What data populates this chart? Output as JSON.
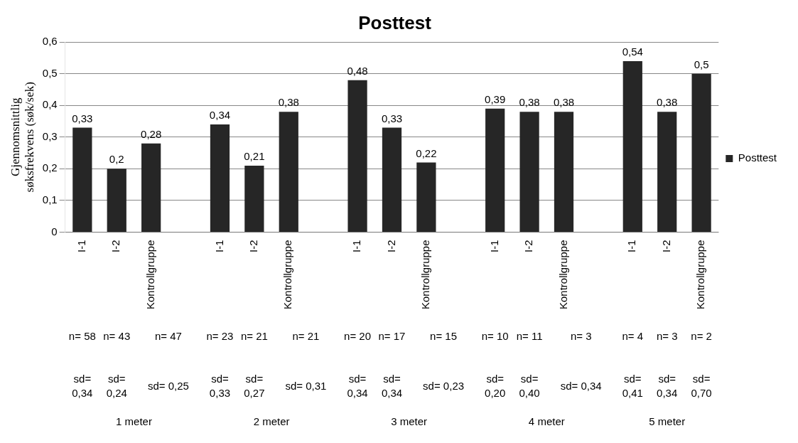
{
  "chart_data": {
    "type": "bar",
    "title": "Posttest",
    "ylabel": "Gjennomsnittlig søksfrekvens (søk/sek)",
    "categories": [
      "I-1",
      "I-2",
      "Kontrollgruppe",
      null,
      "I-1",
      "I-2",
      "Kontrollgruppe",
      null,
      "I-1",
      "I-2",
      "Kontrollgruppe",
      null,
      "I-1",
      "I-2",
      "Kontrollgruppe",
      null,
      "I-1",
      "I-2",
      "Kontrollgruppe"
    ],
    "series": [
      {
        "name": "Posttest",
        "color": "#262626",
        "values": [
          0.33,
          0.2,
          0.28,
          null,
          0.34,
          0.21,
          0.38,
          null,
          0.48,
          0.33,
          0.22,
          null,
          0.39,
          0.38,
          0.38,
          null,
          0.54,
          0.38,
          0.5
        ],
        "value_labels": [
          "0,33",
          "0,2",
          "0,28",
          null,
          "0,34",
          "0,21",
          "0,38",
          null,
          "0,48",
          "0,33",
          "0,22",
          null,
          "0,39",
          "0,38",
          "0,38",
          null,
          "0,54",
          "0,38",
          "0,5"
        ]
      }
    ],
    "ylim": [
      0,
      0.6
    ],
    "yticks": [
      0,
      {
        "value": 0.1,
        "label": "0,1"
      },
      {
        "value": 0.2,
        "label": "0,2"
      },
      {
        "value": 0.3,
        "label": "0,3"
      },
      {
        "value": 0.4,
        "label": "0,4"
      },
      {
        "value": 0.5,
        "label": "0,5"
      },
      {
        "value": 0.6,
        "label": "0,6"
      }
    ],
    "grid": "y",
    "legend": "right",
    "annotations": [
      "n= 58",
      "n= 43",
      "n= 47",
      "n= 23",
      "n= 21",
      "n= 21",
      "n= 20",
      "n= 17",
      "n= 15",
      "n= 10",
      "n= 11",
      "n= 3",
      "n= 4",
      "n= 3",
      "n= 2",
      "sd= 0,34",
      "sd= 0,24",
      "sd= 0,25",
      "sd= 0,33",
      "sd= 0,27",
      "sd= 0,31",
      "sd= 0,34",
      "sd= 0,34",
      "sd= 0,23",
      "sd= 0,20",
      "sd= 0,40",
      "sd= 0,34",
      "sd= 0,41",
      "sd= 0,34",
      "sd= 0,70",
      "1 meter",
      "2 meter",
      "3 meter",
      "4 meter",
      "5 meter"
    ]
  }
}
